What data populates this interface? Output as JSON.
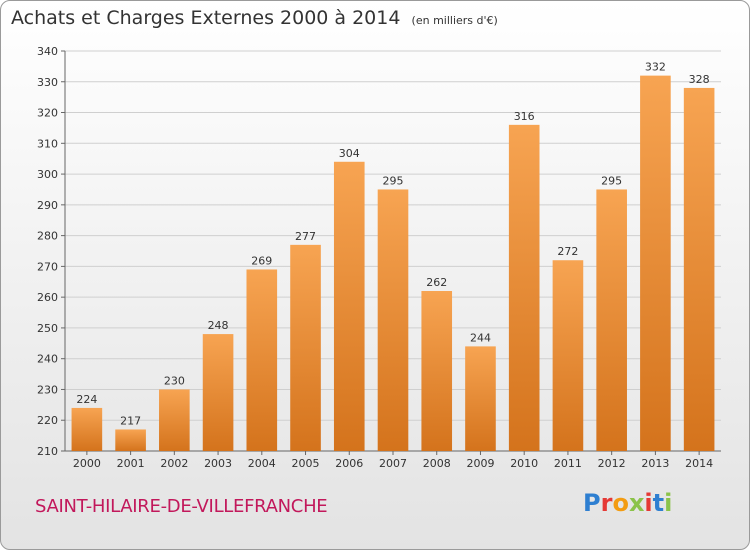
{
  "title": "Achats et Charges Externes 2000 à 2014",
  "unit": "(en milliers d'€)",
  "location": "SAINT-HILAIRE-DE-VILLEFRANCHE",
  "logo_text": "Proxiti",
  "colors": {
    "bar_top": "#f7a452",
    "bar_bottom": "#d4731c",
    "grid": "#cfcfcf",
    "location": "#c2185b"
  },
  "chart_data": {
    "type": "bar",
    "title": "Achats et Charges Externes 2000 à 2014",
    "categories": [
      "2000",
      "2001",
      "2002",
      "2003",
      "2004",
      "2005",
      "2006",
      "2007",
      "2008",
      "2009",
      "2010",
      "2011",
      "2012",
      "2013",
      "2014"
    ],
    "values": [
      224,
      217,
      230,
      248,
      269,
      277,
      304,
      295,
      262,
      244,
      316,
      272,
      295,
      332,
      328
    ],
    "ylim": [
      210,
      340
    ],
    "yticks": [
      210,
      220,
      230,
      240,
      250,
      260,
      270,
      280,
      290,
      300,
      310,
      320,
      330,
      340
    ],
    "grid": true,
    "data_labels": true
  }
}
